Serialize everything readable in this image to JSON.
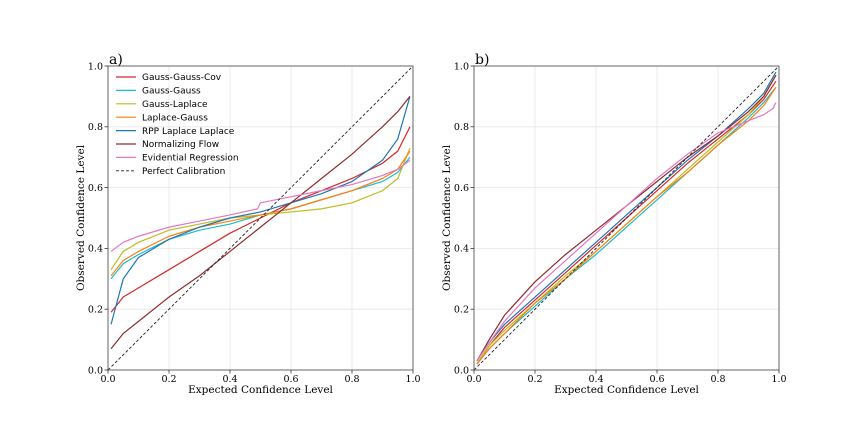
{
  "chart_data": [
    {
      "type": "line",
      "panel_label": "a)",
      "xlabel": "Expected Confidence Level",
      "ylabel": "Observed Confidence Level",
      "xlim": [
        0,
        1
      ],
      "ylim": [
        0,
        1
      ],
      "xticks": [
        "0.0",
        "0.2",
        "0.4",
        "0.6",
        "0.8",
        "1.0"
      ],
      "yticks": [
        "0.0",
        "0.2",
        "0.4",
        "0.6",
        "0.8",
        "1.0"
      ],
      "grid": true,
      "legend_position": "top-left",
      "series": [
        {
          "name": "Gauss-Gauss-Cov",
          "color": "#d62728",
          "x": [
            0.01,
            0.05,
            0.1,
            0.2,
            0.3,
            0.4,
            0.5,
            0.6,
            0.7,
            0.8,
            0.9,
            0.95,
            0.99
          ],
          "y": [
            0.19,
            0.24,
            0.27,
            0.33,
            0.39,
            0.45,
            0.5,
            0.55,
            0.59,
            0.63,
            0.68,
            0.72,
            0.8
          ]
        },
        {
          "name": "Gauss-Gauss",
          "color": "#17becf",
          "x": [
            0.01,
            0.05,
            0.1,
            0.2,
            0.3,
            0.4,
            0.5,
            0.6,
            0.7,
            0.8,
            0.9,
            0.95,
            0.99
          ],
          "y": [
            0.3,
            0.35,
            0.38,
            0.43,
            0.46,
            0.48,
            0.51,
            0.53,
            0.56,
            0.59,
            0.62,
            0.65,
            0.7
          ]
        },
        {
          "name": "Gauss-Laplace",
          "color": "#bcbd22",
          "x": [
            0.01,
            0.05,
            0.1,
            0.2,
            0.3,
            0.4,
            0.5,
            0.6,
            0.7,
            0.8,
            0.9,
            0.95,
            0.99
          ],
          "y": [
            0.33,
            0.39,
            0.42,
            0.46,
            0.48,
            0.5,
            0.51,
            0.52,
            0.53,
            0.55,
            0.59,
            0.63,
            0.73
          ]
        },
        {
          "name": "Laplace-Gauss",
          "color": "#ff7f0e",
          "x": [
            0.01,
            0.05,
            0.1,
            0.2,
            0.3,
            0.4,
            0.5,
            0.6,
            0.7,
            0.8,
            0.9,
            0.95,
            0.99
          ],
          "y": [
            0.31,
            0.36,
            0.39,
            0.44,
            0.47,
            0.49,
            0.51,
            0.53,
            0.56,
            0.59,
            0.63,
            0.66,
            0.72
          ]
        },
        {
          "name": "RPP Laplace Laplace",
          "color": "#1f77b4",
          "x": [
            0.01,
            0.05,
            0.1,
            0.2,
            0.3,
            0.4,
            0.5,
            0.6,
            0.7,
            0.8,
            0.9,
            0.95,
            0.99
          ],
          "y": [
            0.15,
            0.3,
            0.37,
            0.43,
            0.47,
            0.5,
            0.52,
            0.55,
            0.58,
            0.62,
            0.69,
            0.76,
            0.9
          ]
        },
        {
          "name": "Normalizing Flow",
          "color": "#8c2d2d",
          "x": [
            0.01,
            0.05,
            0.1,
            0.2,
            0.3,
            0.4,
            0.5,
            0.6,
            0.7,
            0.8,
            0.9,
            0.95,
            0.99
          ],
          "y": [
            0.07,
            0.12,
            0.16,
            0.24,
            0.31,
            0.39,
            0.47,
            0.55,
            0.63,
            0.71,
            0.8,
            0.85,
            0.9
          ]
        },
        {
          "name": "Evidential Regression",
          "color": "#e377c2",
          "x": [
            0.01,
            0.05,
            0.1,
            0.2,
            0.3,
            0.4,
            0.49,
            0.5,
            0.6,
            0.7,
            0.8,
            0.9,
            0.95,
            0.99
          ],
          "y": [
            0.39,
            0.42,
            0.44,
            0.47,
            0.49,
            0.51,
            0.53,
            0.55,
            0.57,
            0.59,
            0.61,
            0.64,
            0.66,
            0.69
          ]
        },
        {
          "name": "Perfect Calibration",
          "color": "#222222",
          "dashed": true,
          "x": [
            0,
            1
          ],
          "y": [
            0,
            1
          ]
        }
      ]
    },
    {
      "type": "line",
      "panel_label": "b)",
      "xlabel": "Expected Confidence Level",
      "ylabel": "Observed Confidence Level",
      "xlim": [
        0,
        1
      ],
      "ylim": [
        0,
        1
      ],
      "xticks": [
        "0.0",
        "0.2",
        "0.4",
        "0.6",
        "0.8",
        "1.0"
      ],
      "yticks": [
        "0.0",
        "0.2",
        "0.4",
        "0.6",
        "0.8",
        "1.0"
      ],
      "grid": true,
      "series": [
        {
          "name": "Gauss-Gauss-Cov",
          "color": "#d62728",
          "x": [
            0.01,
            0.05,
            0.1,
            0.2,
            0.3,
            0.4,
            0.5,
            0.6,
            0.7,
            0.8,
            0.9,
            0.95,
            0.99
          ],
          "y": [
            0.02,
            0.08,
            0.14,
            0.23,
            0.32,
            0.41,
            0.5,
            0.59,
            0.68,
            0.76,
            0.84,
            0.89,
            0.95
          ]
        },
        {
          "name": "Gauss-Gauss",
          "color": "#17becf",
          "x": [
            0.01,
            0.05,
            0.1,
            0.2,
            0.3,
            0.4,
            0.5,
            0.6,
            0.7,
            0.8,
            0.9,
            0.95,
            0.99
          ],
          "y": [
            0.02,
            0.07,
            0.12,
            0.21,
            0.3,
            0.38,
            0.47,
            0.56,
            0.65,
            0.74,
            0.83,
            0.88,
            0.93
          ]
        },
        {
          "name": "Gauss-Laplace",
          "color": "#bcbd22",
          "x": [
            0.01,
            0.05,
            0.1,
            0.2,
            0.3,
            0.4,
            0.5,
            0.6,
            0.7,
            0.8,
            0.9,
            0.95,
            0.99
          ],
          "y": [
            0.02,
            0.08,
            0.13,
            0.22,
            0.31,
            0.39,
            0.48,
            0.57,
            0.66,
            0.75,
            0.84,
            0.9,
            0.97
          ]
        },
        {
          "name": "Laplace-Gauss",
          "color": "#ff7f0e",
          "x": [
            0.01,
            0.05,
            0.1,
            0.2,
            0.3,
            0.4,
            0.5,
            0.6,
            0.7,
            0.8,
            0.9,
            0.95,
            0.99
          ],
          "y": [
            0.02,
            0.07,
            0.12,
            0.22,
            0.3,
            0.39,
            0.48,
            0.57,
            0.65,
            0.74,
            0.82,
            0.87,
            0.93
          ]
        },
        {
          "name": "RPP Laplace Laplace",
          "color": "#1f77b4",
          "x": [
            0.01,
            0.05,
            0.1,
            0.2,
            0.3,
            0.4,
            0.5,
            0.6,
            0.7,
            0.8,
            0.9,
            0.95,
            0.99
          ],
          "y": [
            0.03,
            0.09,
            0.15,
            0.24,
            0.33,
            0.42,
            0.51,
            0.6,
            0.69,
            0.77,
            0.86,
            0.91,
            0.98
          ]
        },
        {
          "name": "Normalizing Flow",
          "color": "#8c2d2d",
          "x": [
            0.01,
            0.05,
            0.1,
            0.2,
            0.3,
            0.4,
            0.5,
            0.6,
            0.7,
            0.8,
            0.9,
            0.95,
            0.99
          ],
          "y": [
            0.03,
            0.1,
            0.18,
            0.29,
            0.38,
            0.46,
            0.54,
            0.62,
            0.7,
            0.77,
            0.85,
            0.9,
            0.97
          ]
        },
        {
          "name": "Evidential Regression",
          "color": "#e377c2",
          "x": [
            0.01,
            0.05,
            0.1,
            0.2,
            0.3,
            0.4,
            0.5,
            0.6,
            0.7,
            0.8,
            0.9,
            0.95,
            0.98,
            0.99
          ],
          "y": [
            0.03,
            0.09,
            0.16,
            0.27,
            0.36,
            0.45,
            0.54,
            0.63,
            0.71,
            0.78,
            0.82,
            0.84,
            0.86,
            0.88
          ]
        },
        {
          "name": "Perfect Calibration",
          "color": "#222222",
          "dashed": true,
          "x": [
            0,
            1
          ],
          "y": [
            0,
            1
          ]
        }
      ]
    }
  ]
}
